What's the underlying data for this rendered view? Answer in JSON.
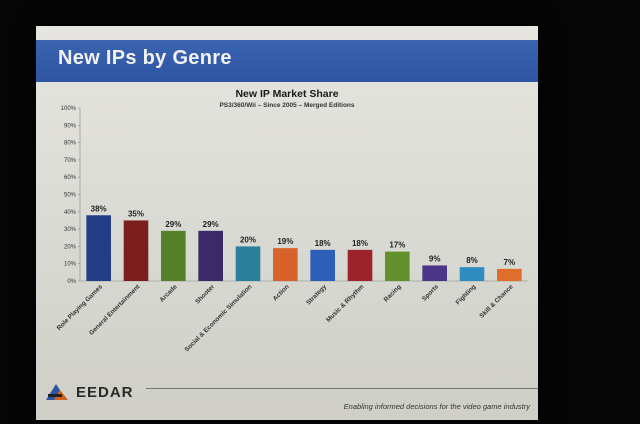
{
  "slide": {
    "title": "New IPs by Genre",
    "brand": "EEDAR",
    "tagline": "Enabling informed decisions for the video game industry"
  },
  "chart_data": {
    "type": "bar",
    "title": "New IP Market Share",
    "subtitle": "PS3/360/Wii – Since 2005 – Merged Editions",
    "categories": [
      "Role Playing Games",
      "General Entertainment",
      "Arcade",
      "Shooter",
      "Social & Economic Simulation",
      "Action",
      "Strategy",
      "Music & Rhythm",
      "Racing",
      "Sports",
      "Fighting",
      "Skill & Chance"
    ],
    "values": [
      38,
      35,
      29,
      29,
      20,
      19,
      18,
      18,
      17,
      9,
      8,
      7
    ],
    "value_labels": [
      "38%",
      "35%",
      "29%",
      "29%",
      "20%",
      "19%",
      "18%",
      "18%",
      "17%",
      "9%",
      "8%",
      "7%"
    ],
    "bar_colors": [
      "#233e87",
      "#7c1e1e",
      "#56802a",
      "#3b2a68",
      "#2a7f9a",
      "#d9622a",
      "#2d5fb8",
      "#9c2329",
      "#62922c",
      "#4a3586",
      "#2f8cc0",
      "#e06d2a"
    ],
    "ylim": [
      0,
      100
    ],
    "yticks": [
      "0%",
      "10%",
      "20%",
      "30%",
      "40%",
      "50%",
      "60%",
      "70%",
      "80%",
      "90%",
      "100%"
    ],
    "grid": false,
    "xlabel": "",
    "ylabel": ""
  }
}
